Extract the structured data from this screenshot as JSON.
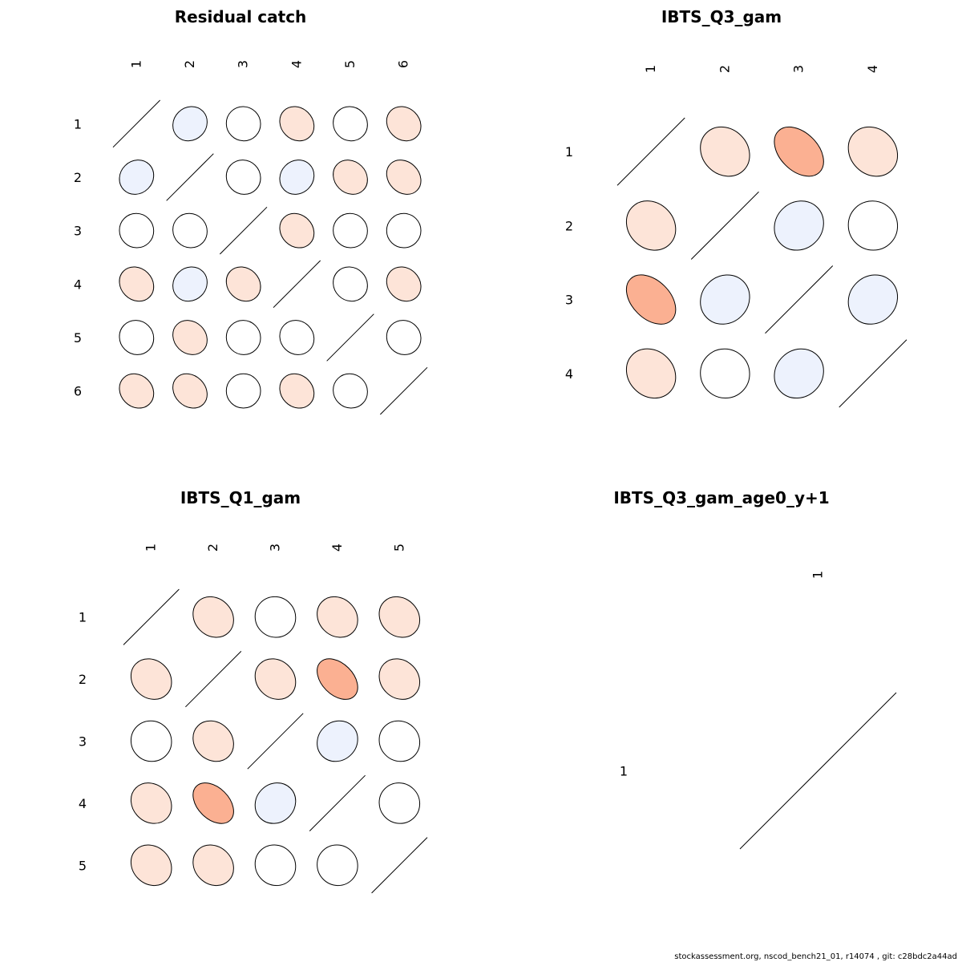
{
  "chart_data": [
    {
      "type": "heatmap",
      "title": "Residual catch",
      "labels": [
        "1",
        "2",
        "3",
        "4",
        "5",
        "6"
      ],
      "matrix": [
        [
          1.0,
          -0.1,
          0.02,
          0.15,
          0.05,
          0.15
        ],
        [
          -0.1,
          1.0,
          0.05,
          -0.1,
          0.15,
          0.2
        ],
        [
          0.02,
          0.05,
          1.0,
          0.15,
          0.02,
          0.0
        ],
        [
          0.15,
          -0.1,
          0.15,
          1.0,
          0.08,
          0.15
        ],
        [
          0.05,
          0.15,
          0.02,
          0.08,
          1.0,
          0.05
        ],
        [
          0.15,
          0.2,
          0.0,
          0.15,
          0.05,
          1.0
        ]
      ]
    },
    {
      "type": "heatmap",
      "title": "IBTS_Q3_gam",
      "labels": [
        "1",
        "2",
        "3",
        "4"
      ],
      "matrix": [
        [
          1.0,
          0.15,
          0.4,
          0.15
        ],
        [
          0.15,
          1.0,
          -0.1,
          0.02
        ],
        [
          0.4,
          -0.1,
          1.0,
          -0.1
        ],
        [
          0.15,
          0.02,
          -0.1,
          1.0
        ]
      ]
    },
    {
      "type": "heatmap",
      "title": "IBTS_Q1_gam",
      "labels": [
        "1",
        "2",
        "3",
        "4",
        "5"
      ],
      "matrix": [
        [
          1.0,
          0.15,
          0.03,
          0.15,
          0.15
        ],
        [
          0.15,
          1.0,
          0.15,
          0.4,
          0.15
        ],
        [
          0.03,
          0.15,
          1.0,
          -0.1,
          0.06
        ],
        [
          0.15,
          0.4,
          -0.1,
          1.0,
          0.03
        ],
        [
          0.15,
          0.15,
          0.06,
          0.03,
          1.0
        ]
      ]
    },
    {
      "type": "heatmap",
      "title": "IBTS_Q3_gam_age0_y+1",
      "labels": [
        "1"
      ],
      "matrix": [
        [
          1.0
        ]
      ]
    }
  ],
  "colors": {
    "strong_positive": "#fbb092",
    "weak_positive": "#fde4d8",
    "weak_negative": "#edf2fd",
    "neutral": "#ffffff",
    "stroke": "#000000"
  },
  "footer_text": "stockassessment.org, nscod_bench21_01, r14074 , git: c28bdc2a44ad"
}
